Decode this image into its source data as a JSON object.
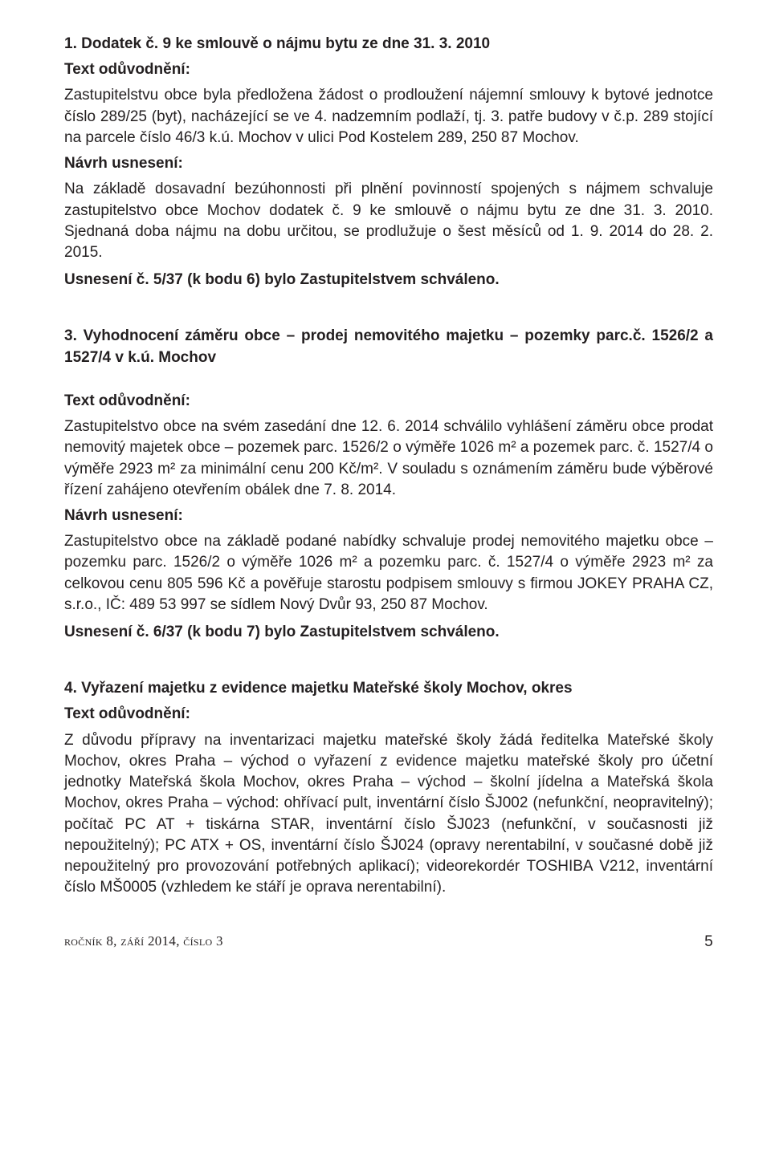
{
  "sec1": {
    "heading": "1. Dodatek č. 9 ke smlouvě o nájmu bytu ze dne 31. 3. 2010",
    "text_oduv_label": "Text odůvodnění:",
    "text_oduv": "Zastupitelstvu obce byla předložena žádost o prodloužení nájemní smlouvy k bytové jednotce číslo 289/25 (byt), nacházející se ve 4. nadzemním podlaží, tj. 3. patře budovy v č.p. 289 stojící na parcele číslo 46/3 k.ú. Mochov v ulici Pod Kostelem 289, 250 87 Mochov.",
    "navrh_label": "Návrh usnesení:",
    "navrh": "Na základě dosavadní bezúhonnosti při plnění povinností spojených s nájmem schvaluje zastupitelstvo obce Mochov dodatek č. 9 ke smlouvě o nájmu bytu ze dne 31. 3. 2010. Sjednaná doba nájmu na dobu určitou, se prodlužuje o šest měsíců od 1. 9. 2014 do 28. 2. 2015.",
    "usneseni": "Usnesení č. 5/37 (k bodu 6) bylo Zastupitelstvem schváleno."
  },
  "sec2": {
    "heading": "3. Vyhodnocení záměru obce – prodej nemovitého majetku – pozemky parc.č. 1526/2 a 1527/4 v k.ú. Mochov",
    "text_oduv_label": "Text odůvodnění:",
    "text_oduv": "Zastupitelstvo obce na svém zasedání dne 12. 6. 2014 schválilo vyhlášení záměru obce prodat nemovitý majetek obce – pozemek parc. 1526/2 o výměře 1026 m² a pozemek parc. č. 1527/4 o výměře 2923 m² za minimální cenu 200 Kč/m². V souladu s oznámením záměru bude výběrové řízení zahájeno otevřením obálek dne 7. 8. 2014.",
    "navrh_label": "Návrh usnesení:",
    "navrh": "Zastupitelstvo obce na základě podané nabídky schvaluje prodej nemovitého majetku obce – pozemku parc. 1526/2 o výměře 1026 m² a pozemku parc. č. 1527/4 o výměře 2923 m² za celkovou cenu 805 596 Kč a pověřuje starostu podpisem smlouvy s firmou JOKEY PRAHA CZ, s.r.o., IČ: 489 53 997 se sídlem Nový Dvůr 93, 250 87 Mochov.",
    "usneseni": "Usnesení č. 6/37 (k bodu 7) bylo Zastupitelstvem schváleno."
  },
  "sec3": {
    "heading": "4. Vyřazení majetku z evidence majetku Mateřské školy Mochov, okres",
    "text_oduv_label": "Text odůvodnění:",
    "text_oduv": "Z důvodu přípravy na inventarizaci majetku mateřské školy žádá ředitelka Mateřské školy Mochov, okres Praha – východ o vyřazení z evidence majetku mateřské školy pro účetní jednotky Mateřská škola Mochov, okres Praha – východ – školní jídelna a Mateřská škola Mochov, okres Praha – východ: ohřívací pult, inventární číslo ŠJ002 (nefunkční, neopravitelný); počítač PC AT + tiskárna STAR, inventární číslo ŠJ023 (nefunkční, v současnosti již nepoužitelný); PC ATX + OS, inventární číslo ŠJ024 (opravy nerentabilní, v současné době již nepoužitelný pro provozování potřebných aplikací); videorekordér TOSHIBA V212, inventární číslo MŠ0005 (vzhledem ke stáří je oprava nerentabilní)."
  },
  "footer": {
    "left": "ročník 8, září 2014, číslo 3",
    "page": "5"
  },
  "style": {
    "body_color": "#231f20",
    "background": "#ffffff",
    "font_size_pt": 14,
    "heading_weight": "700"
  }
}
